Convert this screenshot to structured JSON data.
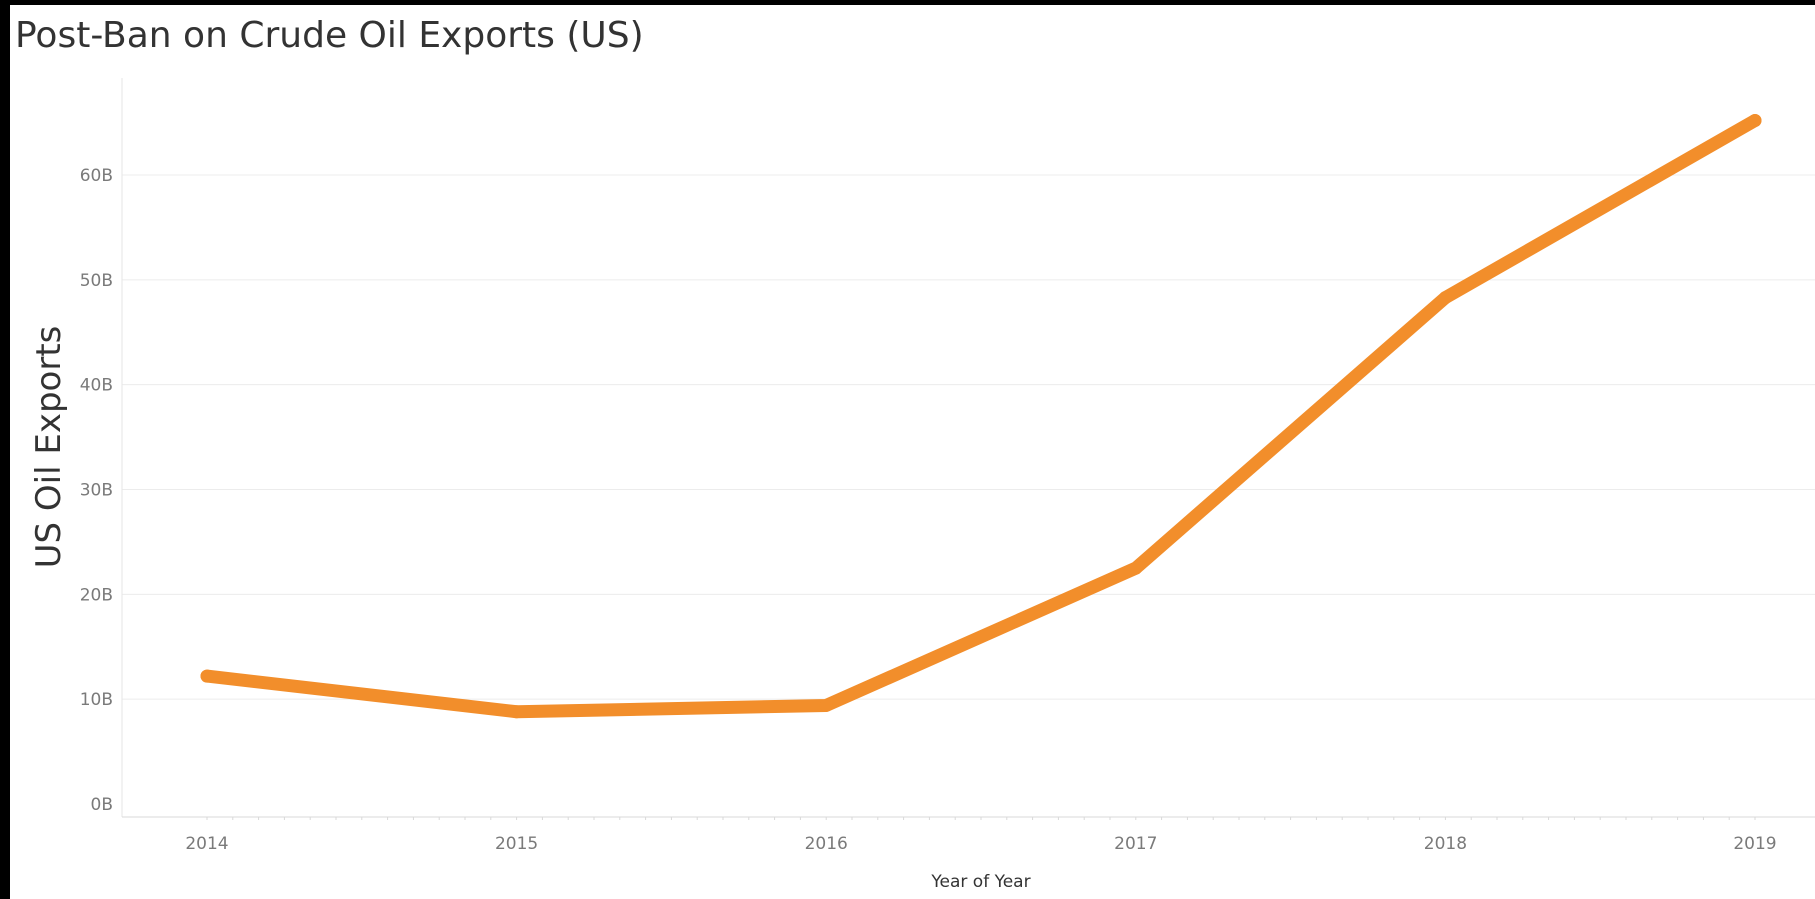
{
  "chart_data": {
    "type": "line",
    "title": "Post-Ban on Crude Oil Exports (US)",
    "xlabel": "Year of Year",
    "ylabel": "US Oil Exports",
    "x": [
      "2014",
      "2015",
      "2016",
      "2017",
      "2018",
      "2019"
    ],
    "series": [
      {
        "values": [
          12200000000,
          8800000000,
          9400000000,
          22500000000,
          48300000000,
          65200000000
        ],
        "color": "#f28e2b"
      }
    ],
    "ylim": [
      0,
      69000000000
    ],
    "yticks": [
      {
        "value": 0,
        "label": "0B"
      },
      {
        "value": 10000000000,
        "label": "10B"
      },
      {
        "value": 20000000000,
        "label": "20B"
      },
      {
        "value": 30000000000,
        "label": "30B"
      },
      {
        "value": 40000000000,
        "label": "40B"
      },
      {
        "value": 50000000000,
        "label": "50B"
      },
      {
        "value": 60000000000,
        "label": "60B"
      }
    ],
    "grid": true,
    "legend": "none"
  }
}
